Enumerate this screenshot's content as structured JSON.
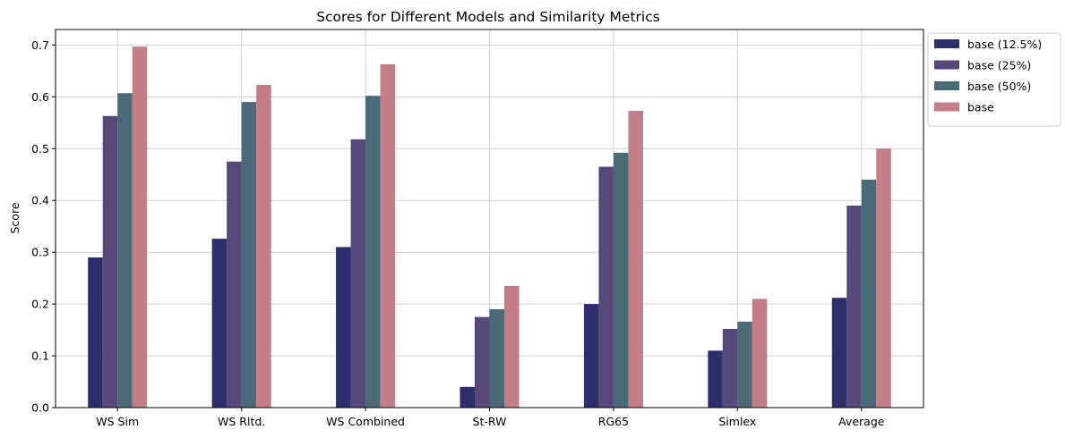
{
  "chart_data": {
    "type": "bar",
    "title": "Scores for Different Models and Similarity Metrics",
    "xlabel": "",
    "ylabel": "Score",
    "ylim": [
      0,
      0.73
    ],
    "yticks": [
      "0.0",
      "0.1",
      "0.2",
      "0.3",
      "0.4",
      "0.5",
      "0.6",
      "0.7"
    ],
    "grid": true,
    "legend_position": "outside-top-right",
    "categories": [
      "WS Sim",
      "WS Rltd.",
      "WS Combined",
      "St-RW",
      "RG65",
      "Simlex",
      "Average"
    ],
    "series": [
      {
        "name": "base (12.5%)",
        "color": "#2c2f6b",
        "values": [
          0.29,
          0.326,
          0.31,
          0.04,
          0.2,
          0.11,
          0.212
        ]
      },
      {
        "name": "base (25%)",
        "color": "#564878",
        "values": [
          0.563,
          0.475,
          0.518,
          0.175,
          0.465,
          0.152,
          0.39
        ]
      },
      {
        "name": "base (50%)",
        "color": "#4b6a78",
        "values": [
          0.607,
          0.59,
          0.602,
          0.19,
          0.492,
          0.166,
          0.44
        ]
      },
      {
        "name": "base",
        "color": "#c37e87",
        "values": [
          0.697,
          0.623,
          0.663,
          0.235,
          0.573,
          0.21,
          0.5
        ]
      }
    ]
  }
}
